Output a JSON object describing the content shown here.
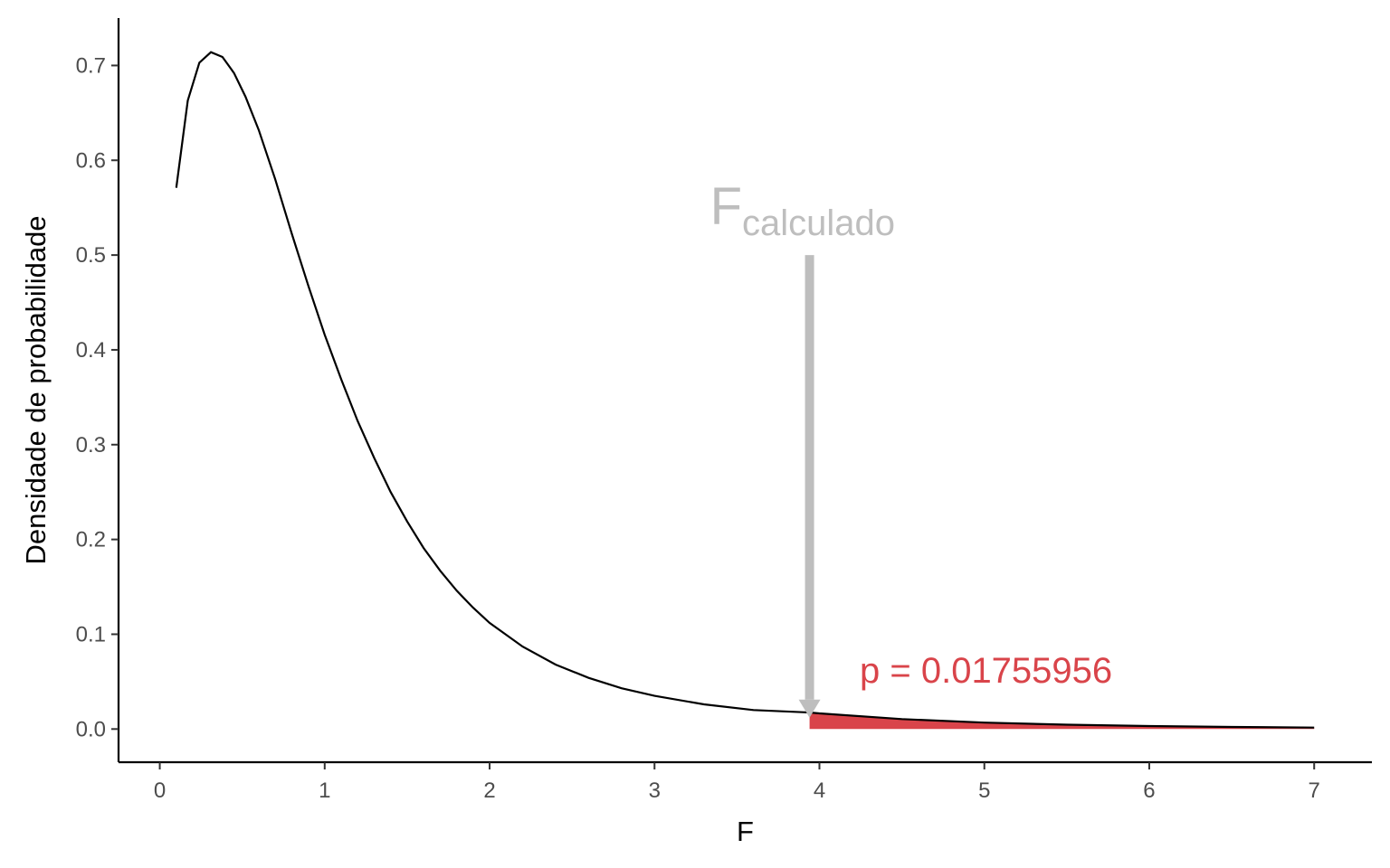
{
  "chart_data": {
    "type": "line",
    "xlabel": "F",
    "ylabel": "Densidade de probabilidade",
    "xlim": [
      -0.25,
      7.35
    ],
    "ylim": [
      -0.035,
      0.75
    ],
    "x_ticks": [
      0,
      1,
      2,
      3,
      4,
      5,
      6,
      7
    ],
    "x_tick_labels": [
      "0",
      "1",
      "2",
      "3",
      "4",
      "5",
      "6",
      "7"
    ],
    "y_ticks": [
      0.0,
      0.1,
      0.2,
      0.3,
      0.4,
      0.5,
      0.6,
      0.7
    ],
    "y_tick_labels": [
      "0.0",
      "0.1",
      "0.2",
      "0.3",
      "0.4",
      "0.5",
      "0.6",
      "0.7"
    ],
    "grid": false,
    "density_curve": {
      "x": [
        0.1,
        0.17,
        0.24,
        0.31,
        0.38,
        0.45,
        0.52,
        0.6,
        0.7,
        0.8,
        0.9,
        1.0,
        1.1,
        1.2,
        1.3,
        1.4,
        1.5,
        1.6,
        1.7,
        1.8,
        1.9,
        2.0,
        2.2,
        2.4,
        2.6,
        2.8,
        3.0,
        3.3,
        3.6,
        3.94,
        4.0,
        4.5,
        5.0,
        5.5,
        6.0,
        6.5,
        7.0
      ],
      "y": [
        0.571,
        0.663,
        0.703,
        0.714,
        0.709,
        0.692,
        0.667,
        0.632,
        0.58,
        0.523,
        0.468,
        0.416,
        0.369,
        0.325,
        0.286,
        0.25,
        0.219,
        0.191,
        0.167,
        0.146,
        0.128,
        0.112,
        0.087,
        0.068,
        0.054,
        0.043,
        0.035,
        0.026,
        0.02,
        0.0175,
        0.0165,
        0.0105,
        0.0068,
        0.0046,
        0.0032,
        0.0022,
        0.0015
      ],
      "color": "#000000"
    },
    "shaded_region": {
      "from_x": 3.94,
      "to_x": 7.0,
      "color": "#d9444a"
    },
    "annotations": {
      "f_label_main": "F",
      "f_label_sub": "calculado",
      "f_arrow_x": 3.94,
      "f_arrow_from_y": 0.5,
      "f_arrow_to_y": 0.012,
      "f_color": "#bebebe",
      "p_label": "p = 0.01755956",
      "p_color": "#d9444a"
    }
  }
}
